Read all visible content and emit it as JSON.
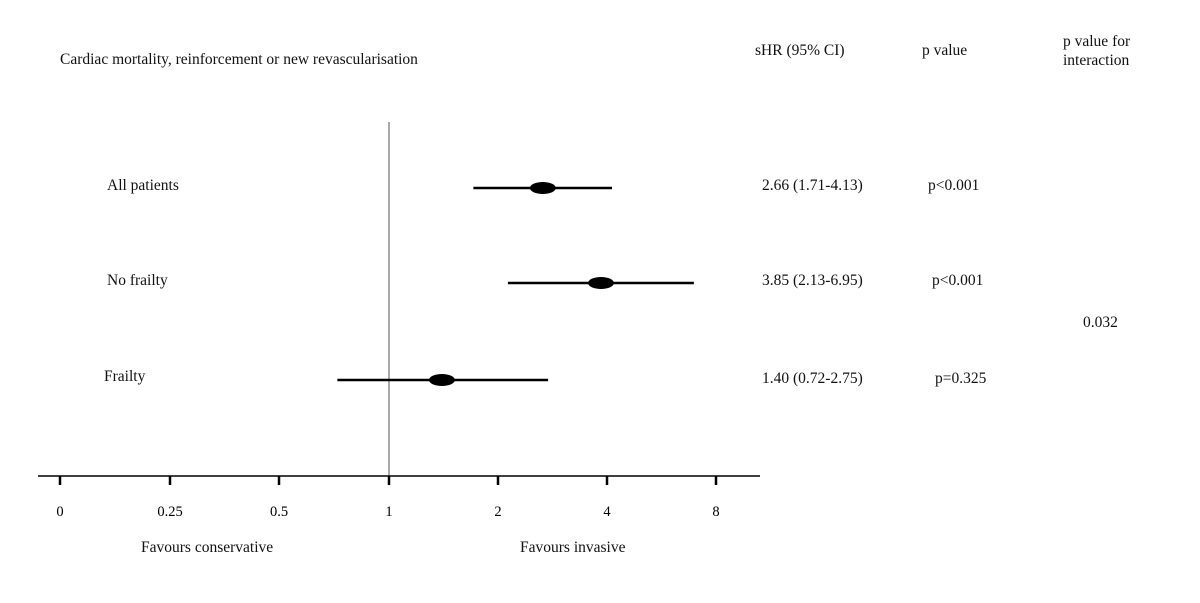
{
  "chart_data": {
    "type": "forest",
    "title": "Cardiac mortality, reinforcement or new revascularisation",
    "columns": {
      "effect": "sHR (95% CI)",
      "pvalue": "p value",
      "interaction": "p value for interaction"
    },
    "rows": [
      {
        "label": "All patients",
        "estimate": 2.66,
        "lower": 1.71,
        "upper": 4.13,
        "text": "2.66 (1.71-4.13)",
        "p": "p<0.001"
      },
      {
        "label": "No frailty",
        "estimate": 3.85,
        "lower": 2.13,
        "upper": 6.95,
        "text": "3.85 (2.13-6.95)",
        "p": "p<0.001"
      },
      {
        "label": "Frailty",
        "estimate": 1.4,
        "lower": 0.72,
        "upper": 2.75,
        "text": "1.40 (0.72-2.75)",
        "p": "p=0.325"
      }
    ],
    "interaction_p": "0.032",
    "x_axis": {
      "scale": "log2",
      "ticks": [
        0,
        0.25,
        0.5,
        1,
        2,
        4,
        8
      ],
      "tick_labels": [
        "0",
        "0.25",
        "0.5",
        "1",
        "2",
        "4",
        "8"
      ],
      "reference": 1
    },
    "favours_left": "Favours conservative",
    "favours_right": "Favours invasive",
    "colors": {
      "ink": "#000000",
      "reference_line": "#555555"
    }
  }
}
